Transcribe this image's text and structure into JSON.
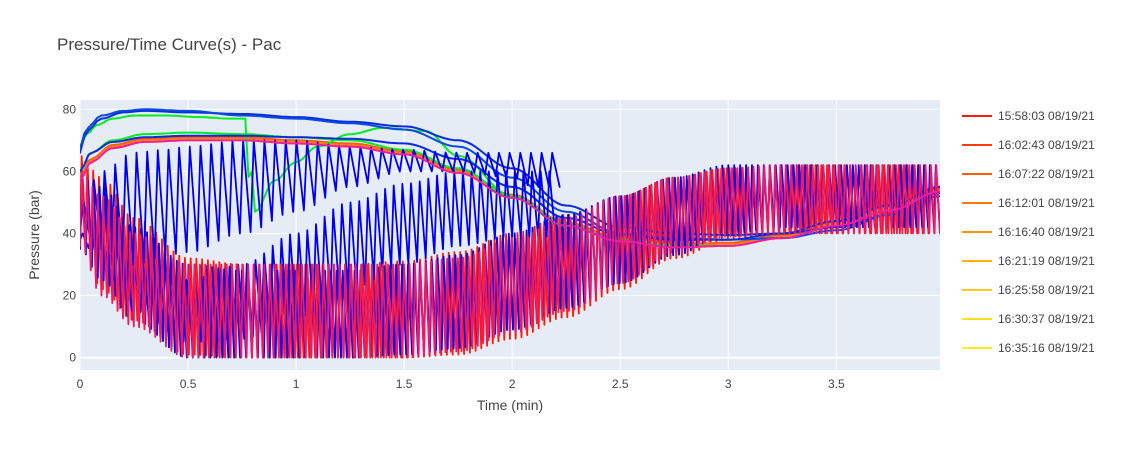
{
  "chart_data": {
    "type": "line",
    "title": "Pressure/Time Curve(s) - Pac",
    "xlabel": "Time (min)",
    "ylabel": "Pressure (bar)",
    "xlim": [
      0,
      3.98
    ],
    "ylim": [
      -4,
      83
    ],
    "x_ticks": [
      0,
      0.5,
      1,
      1.5,
      2,
      2.5,
      3,
      3.5
    ],
    "x_tick_labels": [
      "0",
      "0.5",
      "1",
      "1.5",
      "2",
      "2.5",
      "3",
      "3.5"
    ],
    "y_ticks": [
      0,
      20,
      40,
      60,
      80
    ],
    "y_tick_labels": [
      "0",
      "20",
      "40",
      "60",
      "80"
    ],
    "grid": true,
    "legend_position": "right",
    "background_color": "#e5ecf6",
    "series": [
      {
        "name": "15:58:03 08/19/21",
        "color": "#ff1a0a",
        "kind": "oscillating",
        "x": [
          0,
          0.1,
          0.25,
          0.5,
          0.75,
          1.0,
          1.25,
          1.5,
          1.75,
          2.0,
          2.25,
          2.5,
          2.75,
          3.0,
          3.25,
          3.5,
          3.75,
          3.98
        ],
        "y_low": [
          42,
          22,
          12,
          1,
          0,
          0,
          0,
          0,
          1,
          6,
          13,
          22,
          32,
          38,
          40,
          40,
          40,
          40
        ],
        "y_high": [
          65,
          58,
          45,
          32,
          30,
          30,
          30,
          31,
          34,
          40,
          46,
          52,
          58,
          61,
          62,
          62,
          62,
          62
        ],
        "cycles": 150
      },
      {
        "name": "16:02:43 08/19/21",
        "color": "#ff3a0a",
        "kind": "smooth",
        "x": [
          0,
          0.05,
          0.15,
          0.3,
          0.5,
          0.75,
          1.0,
          1.25,
          1.5,
          1.75,
          2.0,
          2.25,
          2.5,
          2.75,
          3.0,
          3.25,
          3.5,
          3.75,
          3.98
        ],
        "y": [
          58,
          64,
          68,
          70,
          70.5,
          70.5,
          69.5,
          68.5,
          66,
          60,
          52,
          43,
          38,
          36,
          36.5,
          39,
          43,
          48,
          54
        ]
      },
      {
        "name": "16:07:22 08/19/21",
        "color": "#ff5a0a",
        "kind": "smooth",
        "x": [
          0,
          0.05,
          0.15,
          0.3,
          0.5,
          0.75,
          1.0,
          1.25,
          1.5,
          1.75,
          2.0,
          2.25,
          2.5,
          2.75,
          3.0,
          3.25,
          3.5,
          3.75,
          3.98
        ],
        "y": [
          58,
          64,
          68.5,
          70.5,
          71,
          71,
          70,
          69,
          66.5,
          60.5,
          52.5,
          43.5,
          38.5,
          36.5,
          37,
          39.5,
          43.5,
          48.5,
          54.5
        ]
      },
      {
        "name": "16:12:01 08/19/21",
        "color": "#ff7a0a",
        "kind": "smooth",
        "x": [
          0,
          0.05,
          0.15,
          0.3,
          0.5,
          0.75,
          1.0,
          1.25,
          1.5,
          1.75,
          2.0,
          2.25,
          2.5,
          2.75,
          3.0,
          3.25,
          3.5,
          3.75,
          3.98
        ],
        "y": [
          57,
          63.5,
          68,
          70,
          70.5,
          70.5,
          69.5,
          68.5,
          66,
          60,
          52,
          43,
          38,
          36,
          36.5,
          39,
          43,
          48,
          54
        ]
      },
      {
        "name": "16:16:40 08/19/21",
        "color": "#ff960a",
        "kind": "smooth",
        "x": [
          0,
          0.05,
          0.15,
          0.3,
          0.5,
          0.75,
          1.0,
          1.25,
          1.5,
          1.75,
          2.0,
          2.25,
          2.5,
          2.75,
          3.0,
          3.25,
          3.5,
          3.75,
          3.98
        ],
        "y": [
          57,
          63,
          67.5,
          69.5,
          70,
          70,
          69,
          68,
          65.5,
          59.5,
          51.5,
          42.5,
          37.5,
          35.5,
          36,
          38.5,
          42.5,
          47.5,
          53.5
        ]
      },
      {
        "name": "16:21:19 08/19/21",
        "color": "#ffb00a",
        "kind": "smooth",
        "x": [
          0,
          0.05,
          0.15,
          0.3,
          0.5,
          0.75,
          1.0,
          1.25,
          1.5,
          1.75,
          2.0,
          2.25,
          2.5,
          2.75,
          3.0,
          3.25,
          3.5,
          3.75,
          3.98
        ],
        "y": [
          57,
          63,
          67.5,
          69.5,
          70,
          70,
          69,
          68,
          65.5,
          59.5,
          51.5,
          42.5,
          37.5,
          35.5,
          36,
          38.5,
          42.5,
          47.5,
          53.5
        ]
      },
      {
        "name": "16:25:58 08/19/21",
        "color": "#ffc81a",
        "kind": "smooth",
        "x": [
          0,
          0.05,
          0.15,
          0.3,
          0.5,
          0.75,
          1.0,
          1.25,
          1.5,
          1.75,
          2.0,
          2.25,
          2.5,
          2.75,
          3.0,
          3.25,
          3.5,
          3.75,
          3.98
        ],
        "y": [
          57,
          63,
          67.5,
          69.5,
          70,
          70,
          69,
          68,
          65.5,
          59.5,
          51.5,
          42.5,
          37.5,
          35.5,
          36,
          38.5,
          42.5,
          47.5,
          53.5
        ]
      },
      {
        "name": "16:30:37 08/19/21",
        "color": "#ffe01a",
        "kind": "smooth",
        "x": [
          0,
          0.05,
          0.15,
          0.3,
          0.5,
          0.75,
          1.0,
          1.25,
          1.5,
          1.75,
          2.0,
          2.25,
          2.5,
          2.75,
          3.0,
          3.25,
          3.5,
          3.75,
          3.98
        ],
        "y": [
          57,
          63,
          67.5,
          69.5,
          70,
          70,
          69,
          68,
          65.5,
          59.5,
          51.5,
          42.5,
          37.5,
          35.5,
          36,
          38.5,
          42.5,
          47.5,
          53.5
        ]
      },
      {
        "name": "16:35:16 08/19/21",
        "color": "#f5f01a",
        "kind": "smooth",
        "x": [
          0,
          0.05,
          0.15,
          0.3,
          0.5,
          0.75,
          1.0,
          1.25,
          1.5,
          1.75,
          2.0,
          2.25,
          2.5,
          2.75,
          3.0,
          3.25,
          3.5,
          3.75,
          3.98
        ],
        "y": [
          57,
          63,
          67.5,
          69.5,
          70,
          70,
          69,
          68,
          65.5,
          59.5,
          51.5,
          42.5,
          37.5,
          35.5,
          36,
          38.5,
          42.5,
          47.5,
          53.5
        ]
      },
      {
        "color": "#00ee22",
        "kind": "smooth",
        "x": [
          0,
          0.03,
          0.08,
          0.15,
          0.25,
          0.4,
          0.55,
          0.7,
          0.765,
          0.775,
          0.8,
          0.81,
          0.9,
          1.0,
          1.1,
          1.25,
          1.4,
          1.6,
          1.75,
          2.0,
          2.25,
          2.5,
          2.75,
          3.0
        ],
        "y": [
          68,
          72,
          75,
          77,
          78,
          78,
          77.5,
          77,
          77,
          58,
          60,
          47,
          57,
          63,
          68,
          72,
          74,
          73,
          65,
          52,
          43,
          38,
          36,
          36
        ]
      },
      {
        "color": "#00ee22",
        "kind": "smooth",
        "x": [
          0,
          0.05,
          0.15,
          0.3,
          0.5,
          0.75,
          1.0,
          1.25,
          1.5,
          1.75,
          2.0,
          2.25,
          2.5
        ],
        "y": [
          60,
          66,
          70,
          72,
          72.5,
          72,
          71,
          70,
          67,
          61,
          52,
          42,
          38
        ]
      },
      {
        "color": "#0a2adc",
        "kind": "smooth",
        "x": [
          0,
          0.03,
          0.1,
          0.2,
          0.3,
          0.5,
          0.75,
          1.0,
          1.25,
          1.5,
          1.75,
          2.0,
          2.25,
          2.5,
          2.75,
          3.0,
          3.25,
          3.5,
          3.75,
          3.98
        ],
        "y": [
          66,
          73,
          77,
          79,
          79.5,
          79,
          78.5,
          77.5,
          76,
          74.5,
          70,
          61,
          49,
          42,
          40,
          39.5,
          40,
          42,
          46,
          52
        ]
      },
      {
        "color": "#0a4adc",
        "kind": "smooth",
        "x": [
          0,
          0.03,
          0.1,
          0.2,
          0.3,
          0.5,
          0.75,
          1.0,
          1.25,
          1.5,
          1.75,
          2.0,
          2.25,
          2.5,
          2.75,
          3.0,
          3.25,
          3.5,
          3.75,
          3.98
        ],
        "y": [
          67,
          74,
          78,
          79.5,
          80,
          79.5,
          78,
          77,
          75.5,
          73.5,
          68,
          58,
          47,
          40,
          38.5,
          38,
          38.5,
          41,
          46,
          53
        ]
      },
      {
        "color": "#0a2adc",
        "kind": "smooth",
        "x": [
          0,
          0.05,
          0.15,
          0.3,
          0.5,
          0.75,
          1.0,
          1.25,
          1.5,
          1.75,
          2.0,
          2.25,
          2.5,
          2.75,
          3.0,
          3.25,
          3.5,
          3.75,
          3.98
        ],
        "y": [
          60,
          66,
          69.5,
          71,
          71.5,
          71.5,
          71,
          70.5,
          69,
          64,
          55,
          45,
          39.5,
          38,
          38,
          40,
          44,
          49,
          55
        ]
      },
      {
        "color": "#0000ee",
        "kind": "oscillating",
        "x": [
          0,
          0.1,
          0.25,
          0.4,
          0.5,
          0.75,
          1.0,
          1.25,
          1.5,
          1.75,
          2.0,
          2.1,
          2.22
        ],
        "y_low": [
          40,
          35,
          30,
          33,
          34,
          40,
          47,
          55,
          60,
          60,
          58,
          55,
          55
        ],
        "y_high": [
          50,
          60,
          66,
          67,
          68,
          70,
          70,
          68,
          67,
          66,
          66,
          66,
          66
        ],
        "cycles": 45
      },
      {
        "color": "#0000ee",
        "kind": "oscillating",
        "x": [
          0,
          0.1,
          0.25,
          0.5,
          0.75,
          1.0,
          1.25,
          1.5,
          1.75,
          2.0,
          2.2
        ],
        "y_low": [
          38,
          30,
          15,
          5,
          6,
          13,
          22,
          30,
          36,
          39,
          39
        ],
        "y_high": [
          40,
          40,
          30,
          25,
          30,
          40,
          50,
          56,
          60,
          60,
          60
        ],
        "cycles": 55
      },
      {
        "color": "#0000ee",
        "kind": "oscillating",
        "x": [
          0,
          0.1,
          0.25,
          0.5,
          0.75,
          1.0,
          1.25,
          1.5,
          1.75,
          2.0,
          2.25,
          2.5,
          2.75,
          3.0,
          3.25,
          3.5,
          3.75,
          3.98
        ],
        "y_low": [
          35,
          25,
          12,
          0,
          0,
          0,
          0,
          1,
          3,
          9,
          16,
          24,
          33,
          40,
          42,
          42,
          42,
          42
        ],
        "y_high": [
          58,
          55,
          42,
          30,
          28,
          28,
          28,
          30,
          33,
          40,
          46,
          52,
          58,
          62,
          62,
          62,
          62,
          62
        ],
        "cycles": 145
      },
      {
        "color": "#ee1a66",
        "kind": "oscillating",
        "x": [
          0,
          0.1,
          0.25,
          0.5,
          0.75,
          1.0,
          1.25,
          1.5,
          1.75,
          2.0,
          2.25,
          2.5,
          2.75,
          3.0,
          3.25,
          3.5,
          3.75,
          3.98
        ],
        "y_low": [
          36,
          20,
          10,
          0,
          0,
          0,
          0,
          0,
          2,
          8,
          15,
          24,
          34,
          39,
          40,
          40,
          40,
          40
        ],
        "y_high": [
          60,
          52,
          40,
          30,
          30,
          30,
          30,
          30,
          32,
          38,
          45,
          52,
          58,
          61,
          62,
          62,
          62,
          62
        ],
        "cycles": 160
      },
      {
        "color": "#ee1aa8",
        "kind": "smooth",
        "x": [
          0,
          0.05,
          0.15,
          0.3,
          0.5,
          0.75,
          1.0,
          1.25,
          1.5,
          1.75,
          2.0,
          2.25,
          2.5,
          2.75,
          3.0,
          3.25,
          3.5,
          3.75,
          3.98
        ],
        "y": [
          57,
          63,
          67.5,
          69.5,
          70,
          70,
          69,
          68,
          65.5,
          59.5,
          51.5,
          42.5,
          37.5,
          35.5,
          36,
          38.5,
          42.5,
          47.5,
          53.5
        ]
      }
    ]
  }
}
